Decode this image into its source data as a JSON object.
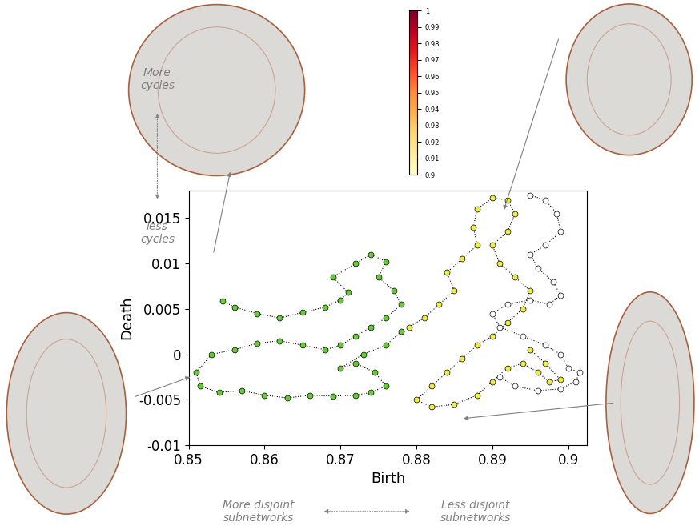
{
  "chart_data": {
    "type": "scatter",
    "x_label": "Birth",
    "y_label": "Death",
    "xlim": [
      0.85,
      0.9025
    ],
    "ylim": [
      -0.01,
      0.018
    ],
    "xticks": [
      0.85,
      0.86,
      0.87,
      0.88,
      0.89,
      0.9
    ],
    "yticks": [
      -0.01,
      -0.005,
      0,
      0.005,
      0.01,
      0.015
    ],
    "grid": false,
    "annotations": [
      "More\ncycles",
      "less\ncycles",
      "More disjoint\nsubnetworks",
      "Less disjoint\nsubnetworks"
    ],
    "colorbar": {
      "lim": [
        0.9,
        1
      ],
      "ticks": [
        0.9,
        0.91,
        0.92,
        0.93,
        0.94,
        0.95,
        0.96,
        0.97,
        0.98,
        0.99,
        1
      ]
    },
    "series": [
      {
        "color": "#66cc33",
        "marker": "o",
        "line_style": "dotted",
        "x": [
          0.8545,
          0.856,
          0.859,
          0.862,
          0.865,
          0.868,
          0.87,
          0.871,
          0.869,
          0.872,
          0.874,
          0.876,
          0.875,
          0.877,
          0.878,
          0.876,
          0.874,
          0.872,
          0.87,
          0.868,
          0.865,
          0.862,
          0.859,
          0.856,
          0.853,
          0.851,
          0.8515,
          0.854,
          0.857,
          0.86,
          0.863,
          0.866,
          0.869,
          0.872,
          0.874,
          0.876,
          0.8745,
          0.872,
          0.87,
          0.873,
          0.876,
          0.878
        ],
        "values": [
          0.0059,
          0.0052,
          0.0045,
          0.004,
          0.0046,
          0.0052,
          0.006,
          0.0068,
          0.0085,
          0.01,
          0.011,
          0.0102,
          0.0085,
          0.007,
          0.0055,
          0.004,
          0.003,
          0.002,
          0.001,
          0.0005,
          0.001,
          0.0015,
          0.0012,
          0.0005,
          0.0,
          -0.002,
          -0.0035,
          -0.0042,
          -0.004,
          -0.0045,
          -0.0048,
          -0.0045,
          -0.0046,
          -0.0045,
          -0.0042,
          -0.0035,
          -0.002,
          -0.001,
          -0.0015,
          0.0,
          0.001,
          0.0025
        ]
      },
      {
        "color": "#eeee44",
        "marker": "o",
        "line_style": "dotted",
        "x": [
          0.879,
          0.881,
          0.883,
          0.885,
          0.884,
          0.886,
          0.888,
          0.8875,
          0.888,
          0.89,
          0.892,
          0.893,
          0.892,
          0.89,
          0.891,
          0.893,
          0.895,
          0.894,
          0.892,
          0.89,
          0.888,
          0.886,
          0.884,
          0.882,
          0.88,
          0.882,
          0.885,
          0.888,
          0.89,
          0.892,
          0.894,
          0.896,
          0.8975,
          0.899,
          0.897,
          0.895
        ],
        "values": [
          0.003,
          0.004,
          0.0055,
          0.007,
          0.009,
          0.0105,
          0.012,
          0.014,
          0.016,
          0.0172,
          0.017,
          0.0155,
          0.0135,
          0.012,
          0.01,
          0.0085,
          0.007,
          0.005,
          0.0035,
          0.002,
          0.001,
          -0.0005,
          -0.002,
          -0.0035,
          -0.005,
          -0.0058,
          -0.0055,
          -0.0045,
          -0.003,
          -0.0015,
          -0.001,
          -0.002,
          -0.003,
          -0.0028,
          -0.001,
          0.0005
        ]
      },
      {
        "color": "#ffffff",
        "marker": "o",
        "line_style": "dotted",
        "x": [
          0.895,
          0.897,
          0.8985,
          0.899,
          0.897,
          0.895,
          0.896,
          0.898,
          0.899,
          0.8975,
          0.895,
          0.892,
          0.89,
          0.891,
          0.894,
          0.897,
          0.899,
          0.9,
          0.9015,
          0.901,
          0.899,
          0.896,
          0.893,
          0.891
        ],
        "values": [
          0.0175,
          0.017,
          0.0155,
          0.0135,
          0.012,
          0.011,
          0.0095,
          0.008,
          0.0065,
          0.0055,
          0.006,
          0.0055,
          0.0045,
          0.003,
          0.002,
          0.001,
          0.0,
          -0.0015,
          -0.002,
          -0.003,
          -0.0038,
          -0.004,
          -0.0035,
          -0.0025
        ]
      }
    ]
  }
}
